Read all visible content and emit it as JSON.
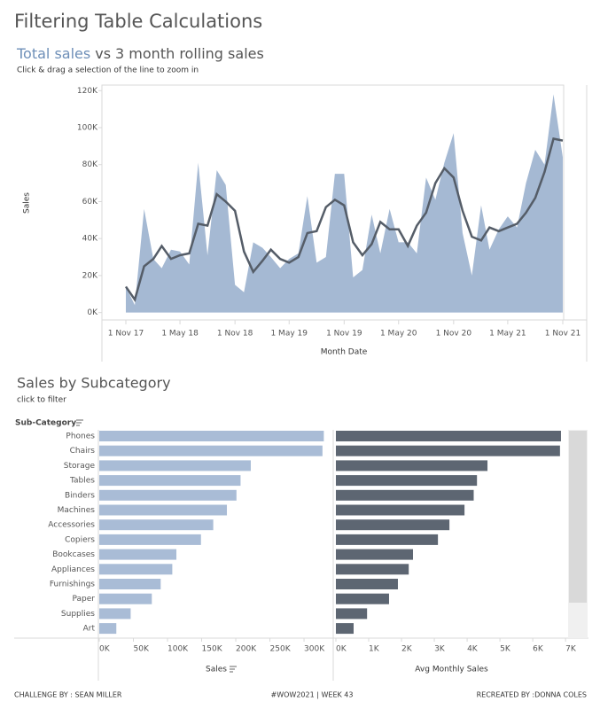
{
  "page": {
    "title": "Filtering Table Calculations",
    "subtitle_connector": "vs",
    "instruction": "Click & drag a selection of the line to zoom in",
    "footer": {
      "left": "CHALLENGE BY : SEAN MILLER",
      "center": "#WOW2021 | WEEK 43",
      "right": "RECREATED BY :DONNA COLES"
    }
  },
  "chart_data": [
    {
      "type": "area-line",
      "y_label": "Sales",
      "x_label": "Month Date",
      "x": [
        "2017-11-01",
        "2017-12-01",
        "2018-01-01",
        "2018-02-01",
        "2018-03-01",
        "2018-04-01",
        "2018-05-01",
        "2018-06-01",
        "2018-07-01",
        "2018-08-01",
        "2018-09-01",
        "2018-10-01",
        "2018-11-01",
        "2018-12-01",
        "2019-01-01",
        "2019-02-01",
        "2019-03-01",
        "2019-04-01",
        "2019-05-01",
        "2019-06-01",
        "2019-07-01",
        "2019-08-01",
        "2019-09-01",
        "2019-10-01",
        "2019-11-01",
        "2019-12-01",
        "2020-01-01",
        "2020-02-01",
        "2020-03-01",
        "2020-04-01",
        "2020-05-01",
        "2020-06-01",
        "2020-07-01",
        "2020-08-01",
        "2020-09-01",
        "2020-10-01",
        "2020-11-01",
        "2020-12-01",
        "2021-01-01",
        "2021-02-01",
        "2021-03-01",
        "2021-04-01",
        "2021-05-01",
        "2021-06-01",
        "2021-07-01",
        "2021-08-01",
        "2021-09-01",
        "2021-10-01",
        "2021-11-01"
      ],
      "series": [
        {
          "name": "Total sales",
          "color": "#a5b9d3",
          "values": [
            14000,
            4000,
            56000,
            29000,
            24000,
            34000,
            33000,
            26000,
            81000,
            31000,
            77000,
            69000,
            15000,
            11000,
            38000,
            35000,
            30000,
            24000,
            29000,
            32000,
            63000,
            27000,
            30000,
            75000,
            75000,
            19000,
            23000,
            53000,
            32000,
            56000,
            38000,
            38000,
            32000,
            73000,
            61000,
            81000,
            97000,
            43000,
            20000,
            58000,
            34000,
            45000,
            52000,
            46000,
            70000,
            88000,
            80000,
            118000,
            84000
          ]
        },
        {
          "name": "3 month rolling sales",
          "color": "#555d68",
          "values": [
            14000,
            7000,
            25000,
            29000,
            36000,
            29000,
            31000,
            32000,
            48000,
            47000,
            64000,
            60000,
            55000,
            33000,
            22000,
            28000,
            34000,
            29000,
            27000,
            30000,
            43000,
            44000,
            57000,
            61000,
            58000,
            38000,
            31000,
            37000,
            49000,
            45000,
            45000,
            36000,
            47000,
            54000,
            70000,
            78000,
            73000,
            55000,
            41000,
            39000,
            46000,
            44000,
            46000,
            48000,
            54000,
            62000,
            76000,
            94000,
            93000
          ]
        }
      ],
      "xlim": [
        "2017-08-13",
        "2021-11-04"
      ],
      "xticks": [
        {
          "value": "2017-11-01",
          "label": "1 Nov 17"
        },
        {
          "value": "2018-05-01",
          "label": "1 May 18"
        },
        {
          "value": "2018-11-01",
          "label": "1 Nov 18"
        },
        {
          "value": "2019-05-01",
          "label": "1 May 19"
        },
        {
          "value": "2019-11-01",
          "label": "1 Nov 19"
        },
        {
          "value": "2020-05-01",
          "label": "1 May 20"
        },
        {
          "value": "2020-11-01",
          "label": "1 Nov 20"
        },
        {
          "value": "2021-05-01",
          "label": "1 May 21"
        },
        {
          "value": "2021-11-01",
          "label": "1 Nov 21"
        }
      ],
      "ylim": [
        -4000,
        123000
      ],
      "yticks": [
        {
          "value": 0,
          "label": "0K"
        },
        {
          "value": 20000,
          "label": "20K"
        },
        {
          "value": 40000,
          "label": "40K"
        },
        {
          "value": 60000,
          "label": "60K"
        },
        {
          "value": 80000,
          "label": "80K"
        },
        {
          "value": 100000,
          "label": "100K"
        },
        {
          "value": 120000,
          "label": "120K"
        }
      ]
    },
    {
      "type": "hbar-pair",
      "title": "Sales by Subcategory",
      "subtitle": "click to filter",
      "category_label": "Sub-Category",
      "categories": [
        "Phones",
        "Chairs",
        "Storage",
        "Tables",
        "Binders",
        "Machines",
        "Accessories",
        "Copiers",
        "Bookcases",
        "Appliances",
        "Furnishings",
        "Paper",
        "Supplies",
        "Art"
      ],
      "series": [
        {
          "name": "Sales",
          "color": "#a9bcd6",
          "values": [
            329000,
            327000,
            222000,
            207000,
            201000,
            187000,
            167000,
            149000,
            113000,
            107000,
            90000,
            77000,
            46000,
            25000
          ],
          "xlim": [
            0,
            335000
          ],
          "xticks": [
            {
              "value": 0,
              "label": "0K"
            },
            {
              "value": 50000,
              "label": "50K"
            },
            {
              "value": 100000,
              "label": "100K"
            },
            {
              "value": 150000,
              "label": "150K"
            },
            {
              "value": 200000,
              "label": "200K"
            },
            {
              "value": 250000,
              "label": "250K"
            },
            {
              "value": 300000,
              "label": "300K"
            }
          ]
        },
        {
          "name": "Avg Monthly Sales",
          "color": "#5d6672",
          "values": [
            6860,
            6830,
            4620,
            4300,
            4200,
            3920,
            3460,
            3110,
            2350,
            2220,
            1890,
            1620,
            950,
            540
          ],
          "xlim": [
            0,
            7050
          ],
          "xticks": [
            {
              "value": 0,
              "label": "0K"
            },
            {
              "value": 1000,
              "label": "1K"
            },
            {
              "value": 2000,
              "label": "2K"
            },
            {
              "value": 3000,
              "label": "3K"
            },
            {
              "value": 4000,
              "label": "4K"
            },
            {
              "value": 5000,
              "label": "5K"
            },
            {
              "value": 6000,
              "label": "6K"
            },
            {
              "value": 7000,
              "label": "7K"
            }
          ]
        }
      ]
    }
  ]
}
